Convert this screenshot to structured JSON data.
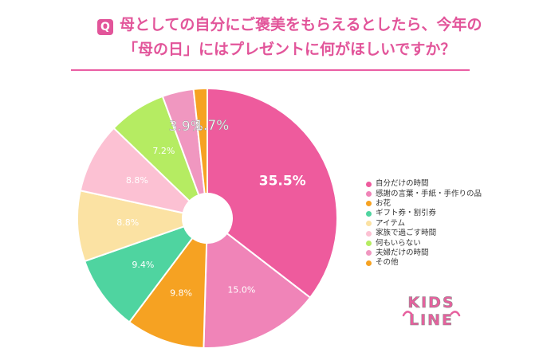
{
  "header": {
    "badge": "Q",
    "title_line1": "母としての自分にご褒美をもらえるとしたら、今年の",
    "title_line2": "「母の日」にはプレゼントに何がほしいですか？"
  },
  "colors": {
    "accent": "#e2559a",
    "divider": "#ea5ea3",
    "logo_pink": "#e7609e",
    "logo_gray": "#8a8a8a"
  },
  "logo": {
    "line1": "KIDS",
    "line2": "LINE"
  },
  "chart_data": {
    "type": "pie",
    "style": "donut",
    "title": "母としての自分にご褒美をもらえるとしたら、今年の「母の日」にはプレゼントに何がほしいですか？",
    "categories": [
      "自分だけの時間",
      "感謝の言葉・手紙・手作りの品",
      "お花",
      "ギフト券・割引券",
      "アイテム",
      "家族で過ごす時間",
      "何もいらない",
      "夫婦だけの時間",
      "その他"
    ],
    "values": [
      35.5,
      15.0,
      9.8,
      9.4,
      8.8,
      8.8,
      7.2,
      3.9,
      1.7
    ],
    "labels": [
      "35.5%",
      "15.0%",
      "9.8%",
      "9.4%",
      "8.8%",
      "8.8%",
      "7.2%",
      "3.9%",
      "1.7%"
    ],
    "colors": [
      "#ee5b9d",
      "#f084b8",
      "#f6a222",
      "#4fd4a0",
      "#fbe2a3",
      "#fcc1d3",
      "#b5ec62",
      "#f097c0",
      "#f6a222"
    ],
    "legend_position": "right"
  }
}
